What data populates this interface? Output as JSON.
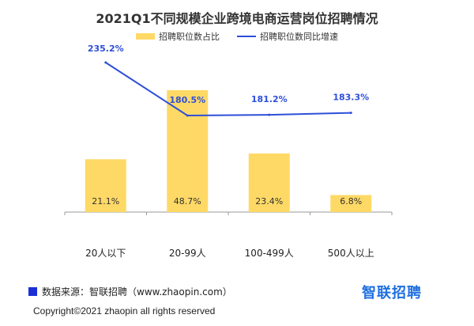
{
  "chart_data": {
    "type": "bar",
    "title": "2021Q1不同规模企业跨境电商运营岗位招聘情况",
    "categories": [
      "20人以下",
      "20-99人",
      "100-499人",
      "500人以上"
    ],
    "series": [
      {
        "name": "招聘职位数占比",
        "kind": "bar",
        "color": "#FFD966",
        "values": [
          21.1,
          48.7,
          23.4,
          6.8
        ],
        "labels": [
          "21.1%",
          "48.7%",
          "23.4%",
          "6.8%"
        ]
      },
      {
        "name": "招聘职位数同比增速",
        "kind": "line",
        "color": "#2E4FD8",
        "values": [
          235.2,
          180.5,
          181.2,
          183.3
        ],
        "labels": [
          "235.2%",
          "180.5%",
          "181.2%",
          "183.3%"
        ]
      }
    ],
    "grid": false,
    "legend_position": "top"
  },
  "footer": {
    "source": "数据来源：智联招聘（www.zhaopin.com）",
    "logo": "智联招聘",
    "copyright": "Copyright©2021 zhaopin all rights reserved"
  }
}
